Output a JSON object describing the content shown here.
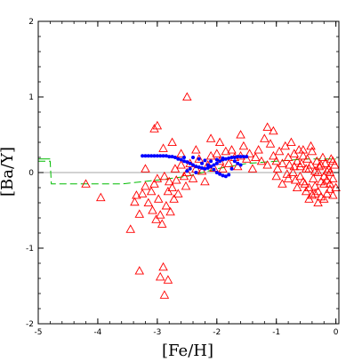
{
  "chart_data": {
    "type": "scatter",
    "xlabel": "[Fe/H]",
    "ylabel": "[Ba/Y]",
    "xlim": [
      -5,
      0.05
    ],
    "ylim": [
      -2,
      2
    ],
    "xticks": [
      -5,
      -4,
      -3,
      -2,
      -1,
      0
    ],
    "xtick_labels": [
      "-5",
      "-4",
      "-3",
      "-2",
      "-1",
      "0"
    ],
    "yticks": [
      -2,
      -1,
      0,
      1,
      2
    ],
    "ytick_labels": [
      "-2",
      "-1",
      "0",
      "1",
      "2"
    ],
    "reference_line": {
      "y": 0,
      "color": "#888888"
    },
    "series": [
      {
        "marker": "triangle-open",
        "color": "#ff0000",
        "points": [
          [
            -4.2,
            -0.15
          ],
          [
            -3.95,
            -0.33
          ],
          [
            -3.45,
            -0.75
          ],
          [
            -3.38,
            -0.39
          ],
          [
            -3.35,
            -0.3
          ],
          [
            -3.3,
            -0.55
          ],
          [
            -3.25,
            -0.28
          ],
          [
            -3.2,
            -0.18
          ],
          [
            -3.15,
            -0.4
          ],
          [
            -3.1,
            -0.25
          ],
          [
            -3.08,
            -0.5
          ],
          [
            -3.05,
            -0.15
          ],
          [
            -3.02,
            -0.62
          ],
          [
            -3.0,
            -0.08
          ],
          [
            -2.98,
            -0.35
          ],
          [
            -2.95,
            -0.56
          ],
          [
            -2.92,
            -0.68
          ],
          [
            -2.88,
            -0.05
          ],
          [
            -2.85,
            -0.44
          ],
          [
            -2.82,
            -0.25
          ],
          [
            -2.8,
            -0.12
          ],
          [
            -2.78,
            -0.52
          ],
          [
            -2.75,
            -0.2
          ],
          [
            -2.72,
            -0.35
          ],
          [
            -2.7,
            0.05
          ],
          [
            -2.68,
            -0.1
          ],
          [
            -2.65,
            -0.28
          ],
          [
            -2.6,
            0.1
          ],
          [
            -2.55,
            -0.05
          ],
          [
            -2.52,
            -0.18
          ],
          [
            -2.5,
            0.0
          ],
          [
            -2.45,
            0.12
          ],
          [
            -2.4,
            -0.08
          ],
          [
            -2.35,
            0.05
          ],
          [
            -2.3,
            0.18
          ],
          [
            -2.25,
            0.02
          ],
          [
            -2.2,
            -0.12
          ],
          [
            -2.15,
            0.1
          ],
          [
            -2.1,
            0.22
          ],
          [
            -2.05,
            0.06
          ],
          [
            -2.0,
            0.25
          ],
          [
            -1.95,
            0.15
          ],
          [
            -1.9,
            0.05
          ],
          [
            -1.85,
            0.28
          ],
          [
            -1.8,
            0.12
          ],
          [
            -1.75,
            0.3
          ],
          [
            -1.7,
            0.2
          ],
          [
            -1.65,
            0.08
          ],
          [
            -1.6,
            0.22
          ],
          [
            -1.55,
            0.35
          ],
          [
            -1.5,
            0.18
          ],
          [
            -1.45,
            0.25
          ],
          [
            -1.4,
            0.05
          ],
          [
            -1.35,
            0.2
          ],
          [
            -1.3,
            0.3
          ],
          [
            -1.25,
            0.15
          ],
          [
            -1.2,
            0.45
          ],
          [
            -1.15,
            0.1
          ],
          [
            -1.1,
            0.38
          ],
          [
            -1.05,
            0.22
          ],
          [
            -1.0,
            0.15
          ],
          [
            -0.98,
            0.05
          ],
          [
            -0.95,
            0.28
          ],
          [
            -0.9,
            0.12
          ],
          [
            -0.85,
            0.35
          ],
          [
            -0.82,
            -0.02
          ],
          [
            -0.8,
            0.2
          ],
          [
            -0.78,
            0.1
          ],
          [
            -0.75,
            0.4
          ],
          [
            -0.72,
            0.0
          ],
          [
            -0.7,
            0.25
          ],
          [
            -0.68,
            -0.1
          ],
          [
            -0.65,
            0.15
          ],
          [
            -0.62,
            0.3
          ],
          [
            -0.6,
            -0.05
          ],
          [
            -0.58,
            0.12
          ],
          [
            -0.55,
            0.22
          ],
          [
            -0.52,
            -0.15
          ],
          [
            -0.5,
            0.05
          ],
          [
            -0.48,
            0.18
          ],
          [
            -0.45,
            -0.2
          ],
          [
            -0.42,
            0.1
          ],
          [
            -0.4,
            0.28
          ],
          [
            -0.38,
            -0.08
          ],
          [
            -0.35,
            0.02
          ],
          [
            -0.32,
            0.15
          ],
          [
            -0.3,
            -0.25
          ],
          [
            -0.28,
            0.08
          ],
          [
            -0.25,
            -0.12
          ],
          [
            -0.22,
            0.2
          ],
          [
            -0.2,
            -0.05
          ],
          [
            -0.18,
            0.12
          ],
          [
            -0.15,
            -0.28
          ],
          [
            -0.12,
            0.05
          ],
          [
            -0.1,
            -0.15
          ],
          [
            -0.08,
            0.18
          ],
          [
            -0.05,
            -0.08
          ],
          [
            -0.02,
            0.1
          ],
          [
            0.0,
            -0.2
          ],
          [
            -0.6,
            0.08
          ],
          [
            -0.55,
            -0.12
          ],
          [
            -0.45,
            0.05
          ],
          [
            -0.4,
            -0.3
          ],
          [
            -0.35,
            -0.18
          ],
          [
            -0.3,
            0.0
          ],
          [
            -0.25,
            0.1
          ],
          [
            -0.2,
            -0.35
          ],
          [
            -0.15,
            0.02
          ],
          [
            -0.1,
            -0.22
          ],
          [
            -0.05,
            0.15
          ],
          [
            -0.5,
            -0.25
          ],
          [
            -0.7,
            0.08
          ],
          [
            -0.65,
            -0.2
          ],
          [
            -0.8,
            -0.08
          ],
          [
            -0.9,
            -0.15
          ],
          [
            -1.0,
            -0.05
          ],
          [
            -0.3,
            -0.4
          ],
          [
            -0.2,
            -0.15
          ],
          [
            -0.1,
            0.0
          ],
          [
            -0.45,
            -0.35
          ],
          [
            -0.35,
            -0.28
          ],
          [
            -0.25,
            -0.32
          ],
          [
            -0.15,
            -0.1
          ],
          [
            -0.05,
            -0.3
          ],
          [
            -0.55,
            0.3
          ],
          [
            -0.42,
            0.35
          ],
          [
            -2.5,
            1.0
          ],
          [
            -3.0,
            0.62
          ],
          [
            -3.05,
            0.58
          ],
          [
            -2.75,
            0.4
          ],
          [
            -2.9,
            0.32
          ],
          [
            -2.1,
            0.45
          ],
          [
            -3.2,
            0.05
          ],
          [
            -3.3,
            -1.3
          ],
          [
            -2.9,
            -1.25
          ],
          [
            -2.95,
            -1.38
          ],
          [
            -2.82,
            -1.42
          ],
          [
            -2.88,
            -1.62
          ],
          [
            -2.6,
            0.25
          ],
          [
            -2.35,
            0.3
          ],
          [
            -1.95,
            0.4
          ],
          [
            -1.15,
            0.6
          ],
          [
            -1.05,
            0.55
          ],
          [
            -1.6,
            0.5
          ]
        ]
      },
      {
        "marker": "dot",
        "color": "#0000ff",
        "points": [
          [
            -3.25,
            0.22
          ],
          [
            -3.2,
            0.22
          ],
          [
            -3.15,
            0.22
          ],
          [
            -3.1,
            0.22
          ],
          [
            -3.05,
            0.22
          ],
          [
            -3.0,
            0.22
          ],
          [
            -2.95,
            0.22
          ],
          [
            -2.9,
            0.22
          ],
          [
            -2.85,
            0.22
          ],
          [
            -2.8,
            0.21
          ],
          [
            -2.75,
            0.21
          ],
          [
            -2.7,
            0.2
          ],
          [
            -2.65,
            0.18
          ],
          [
            -2.6,
            0.17
          ],
          [
            -2.55,
            0.15
          ],
          [
            -2.5,
            0.14
          ],
          [
            -2.45,
            0.12
          ],
          [
            -2.4,
            0.1
          ],
          [
            -2.35,
            0.08
          ],
          [
            -2.3,
            0.07
          ],
          [
            -2.25,
            0.06
          ],
          [
            -2.2,
            0.05
          ],
          [
            -2.15,
            0.06
          ],
          [
            -2.1,
            0.08
          ],
          [
            -2.05,
            0.1
          ],
          [
            -2.0,
            0.12
          ],
          [
            -1.95,
            0.15
          ],
          [
            -1.9,
            0.17
          ],
          [
            -1.85,
            0.18
          ],
          [
            -1.8,
            0.19
          ],
          [
            -1.75,
            0.2
          ],
          [
            -1.7,
            0.2
          ],
          [
            -1.65,
            0.21
          ],
          [
            -1.6,
            0.21
          ],
          [
            -1.55,
            0.21
          ],
          [
            -1.5,
            0.21
          ],
          [
            -2.3,
            0.18
          ],
          [
            -2.2,
            0.16
          ],
          [
            -2.1,
            0.15
          ],
          [
            -2.0,
            0.17
          ],
          [
            -1.9,
            0.19
          ],
          [
            -2.4,
            0.2
          ],
          [
            -2.25,
            0.12
          ],
          [
            -2.15,
            0.1
          ],
          [
            -2.05,
            0.04
          ],
          [
            -2.0,
            0.0
          ],
          [
            -1.95,
            -0.02
          ],
          [
            -1.9,
            -0.04
          ],
          [
            -1.85,
            -0.05
          ],
          [
            -1.8,
            -0.03
          ],
          [
            -2.5,
            0.02
          ],
          [
            -2.45,
            0.05
          ],
          [
            -2.35,
            0.0
          ],
          [
            -2.55,
            0.2
          ],
          [
            -1.7,
            0.15
          ],
          [
            -1.65,
            0.12
          ],
          [
            -1.6,
            0.1
          ],
          [
            -1.75,
            0.05
          ]
        ]
      }
    ],
    "lines": [
      {
        "style": "dashed",
        "color": "#00bb00",
        "points": [
          [
            -5.0,
            0.15
          ],
          [
            -4.8,
            0.15
          ],
          [
            -4.78,
            -0.15
          ],
          [
            -3.6,
            -0.15
          ],
          [
            -3.0,
            -0.1
          ],
          [
            -2.5,
            -0.05
          ],
          [
            -2.0,
            0.05
          ],
          [
            -1.5,
            0.12
          ],
          [
            -1.0,
            0.15
          ],
          [
            -0.5,
            0.18
          ],
          [
            0.0,
            0.18
          ]
        ]
      },
      {
        "style": "solid",
        "color": "#00bb00",
        "points": [
          [
            -5.0,
            0.18
          ],
          [
            -4.8,
            0.18
          ]
        ]
      }
    ]
  }
}
